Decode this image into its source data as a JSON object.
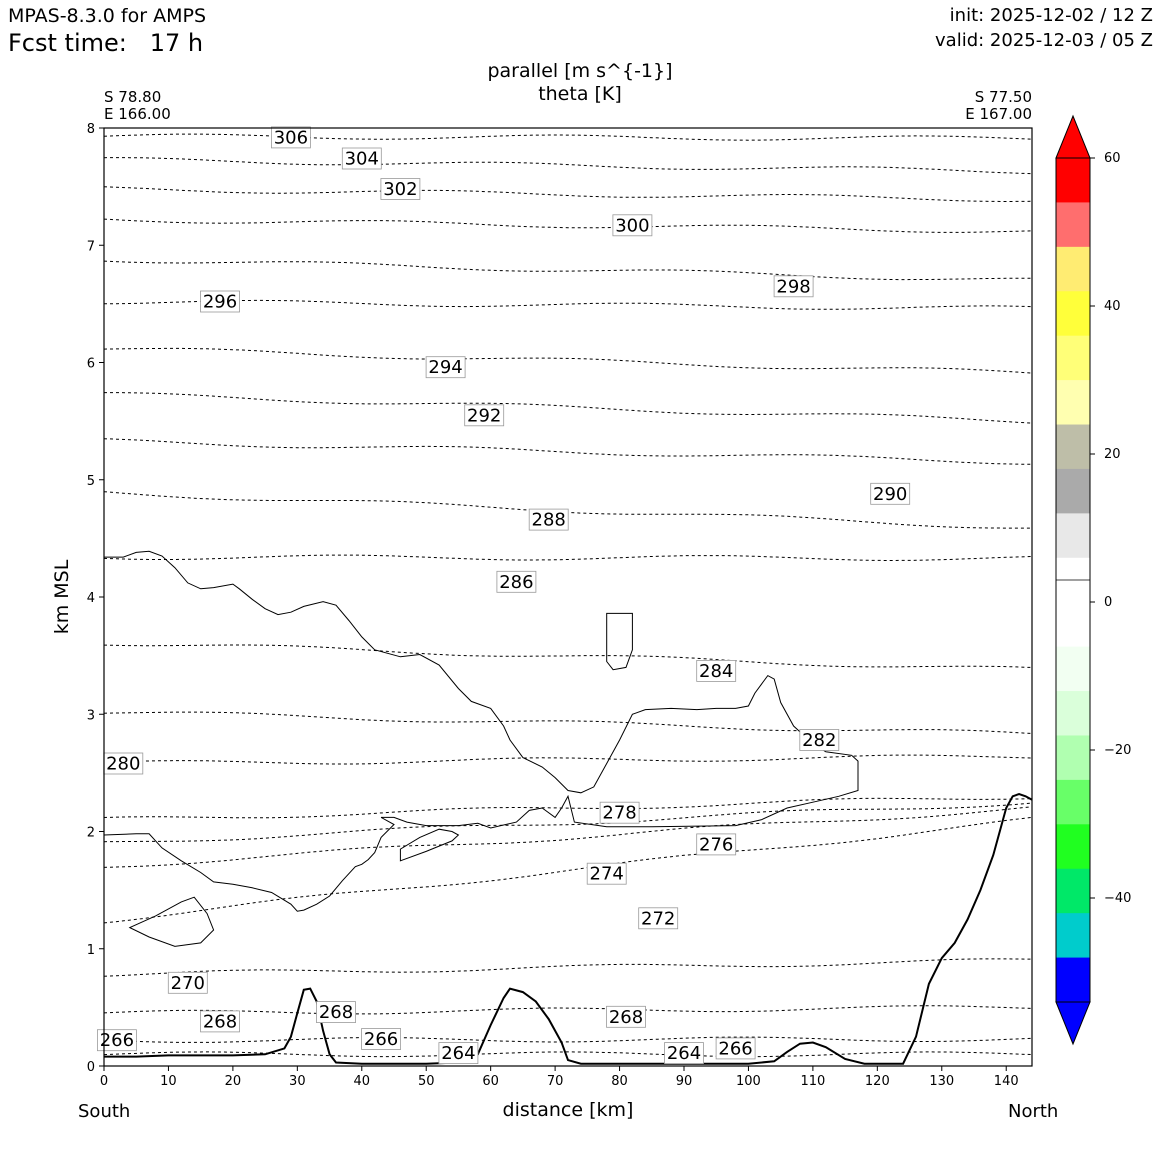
{
  "header": {
    "model": "MPAS-8.3.0 for AMPS",
    "fcst_label": "Fcst time:",
    "fcst_value": "17 h",
    "init": "init: 2025-12-02 / 12 Z",
    "valid": "valid: 2025-12-03 / 05 Z"
  },
  "chart_data": {
    "type": "contour",
    "title": "parallel [m s^{-1}]",
    "subtitle": "theta [K]",
    "xlabel": "distance [km]",
    "ylabel": "km MSL",
    "xlim": [
      0,
      144
    ],
    "ylim": [
      0,
      8
    ],
    "x_ticks": [
      "0",
      "10",
      "20",
      "30",
      "40",
      "50",
      "60",
      "70",
      "80",
      "90",
      "100",
      "110",
      "120",
      "130",
      "140"
    ],
    "y_ticks": [
      "0",
      "1",
      "2",
      "3",
      "4",
      "5",
      "6",
      "7",
      "8"
    ],
    "start_point": {
      "lat": "S 78.80",
      "lon": "E 166.00",
      "name": "South"
    },
    "end_point": {
      "lat": "S 77.50",
      "lon": "E 167.00",
      "name": "North"
    },
    "theta_contours": [
      {
        "level": "306",
        "y0": 7.93,
        "y1": 7.91,
        "label_x": 29,
        "label_y": 7.92
      },
      {
        "level": "304",
        "y0": 7.73,
        "y1": 7.63,
        "label_x": 40,
        "label_y": 7.74
      },
      {
        "level": "302",
        "y0": 7.48,
        "y1": 7.39,
        "label_x": 46,
        "label_y": 7.48
      },
      {
        "level": "300",
        "y0": 7.22,
        "y1": 7.12,
        "label_x": 82,
        "label_y": 7.17
      },
      {
        "level": "298",
        "y0": 6.88,
        "y1": 6.7,
        "label_x": 107,
        "label_y": 6.65
      },
      {
        "level": "296",
        "y0": 6.52,
        "y1": 6.46,
        "label_x": 18,
        "label_y": 6.52
      },
      {
        "level": "294",
        "y0": 6.12,
        "y1": 5.91,
        "label_x": 53,
        "label_y": 5.96
      },
      {
        "level": "292",
        "y0": 5.73,
        "y1": 5.5,
        "label_x": 59,
        "label_y": 5.55
      },
      {
        "level": "290",
        "y0": 5.33,
        "y1": 5.15,
        "label_x": 122,
        "label_y": 4.88
      },
      {
        "level": "288",
        "y0": 4.89,
        "y1": 4.59,
        "label_x": 69,
        "label_y": 4.66
      },
      {
        "level": "286",
        "y0": 4.34,
        "y1": 4.33,
        "label_x": 64,
        "label_y": 4.13
      },
      {
        "level": "284",
        "y0": 3.61,
        "y1": 3.38,
        "label_x": 95,
        "label_y": 3.37
      },
      {
        "level": "282",
        "y0": 3.02,
        "y1": 2.83,
        "label_x": 111,
        "label_y": 2.78
      },
      {
        "level": "280",
        "y0": 2.58,
        "y1": 2.64,
        "label_x": 3,
        "label_y": 2.58
      },
      {
        "level": "278",
        "y0": 2.1,
        "y1": 2.3,
        "label_x": 80,
        "label_y": 2.16
      },
      {
        "level": "276",
        "y0": 1.9,
        "y1": 2.25,
        "label_x": 95,
        "label_y": 1.89
      },
      {
        "level": "274",
        "y0": 1.7,
        "y1": 2.2,
        "label_x": 78,
        "label_y": 1.64
      },
      {
        "level": "272",
        "y0": 1.24,
        "y1": 2.1,
        "label_x": 86,
        "label_y": 1.26
      },
      {
        "level": "270",
        "y0": 0.78,
        "y1": 0.9,
        "label_x": 13,
        "label_y": 0.71
      },
      {
        "level": "268",
        "y0": 0.45,
        "y1": 0.5,
        "label_x": 18,
        "label_y": 0.38
      },
      {
        "level": "268",
        "y0": 0.45,
        "y1": 0.5,
        "label_x": 36,
        "label_y": 0.46
      },
      {
        "level": "268",
        "y0": 0.45,
        "y1": 0.5,
        "label_x": 81,
        "label_y": 0.42
      },
      {
        "level": "266",
        "y0": 0.22,
        "y1": 0.23,
        "label_x": 2,
        "label_y": 0.22
      },
      {
        "level": "266",
        "y0": 0.22,
        "y1": 0.23,
        "label_x": 43,
        "label_y": 0.23
      },
      {
        "level": "266",
        "y0": 0.22,
        "y1": 0.23,
        "label_x": 98,
        "label_y": 0.15
      },
      {
        "level": "264",
        "y0": 0.1,
        "y1": 0.1,
        "label_x": 55,
        "label_y": 0.11
      },
      {
        "level": "264",
        "y0": 0.1,
        "y1": 0.1,
        "label_x": 90,
        "label_y": 0.11
      }
    ],
    "wind_zero_contour": [
      [
        0,
        4.34
      ],
      [
        3,
        4.34
      ],
      [
        5,
        4.38
      ],
      [
        7,
        4.39
      ],
      [
        9,
        4.35
      ],
      [
        11,
        4.25
      ],
      [
        13,
        4.12
      ],
      [
        15,
        4.07
      ],
      [
        17,
        4.08
      ],
      [
        20,
        4.11
      ],
      [
        21,
        4.07
      ],
      [
        23,
        3.98
      ],
      [
        25,
        3.9
      ],
      [
        27,
        3.85
      ],
      [
        29,
        3.87
      ],
      [
        31,
        3.92
      ],
      [
        34,
        3.96
      ],
      [
        36,
        3.93
      ],
      [
        38,
        3.8
      ],
      [
        40,
        3.66
      ],
      [
        42,
        3.55
      ],
      [
        46,
        3.49
      ],
      [
        49,
        3.51
      ],
      [
        52,
        3.42
      ],
      [
        55,
        3.22
      ],
      [
        57,
        3.11
      ],
      [
        60,
        3.05
      ],
      [
        62,
        2.9
      ],
      [
        63,
        2.78
      ],
      [
        65,
        2.63
      ],
      [
        68,
        2.55
      ],
      [
        70,
        2.46
      ],
      [
        72,
        2.35
      ],
      [
        74,
        2.33
      ],
      [
        76,
        2.38
      ],
      [
        78,
        2.58
      ],
      [
        80,
        2.78
      ],
      [
        82,
        3.0
      ],
      [
        84,
        3.04
      ],
      [
        88,
        3.05
      ],
      [
        92,
        3.04
      ],
      [
        95,
        3.05
      ],
      [
        98,
        3.05
      ],
      [
        100,
        3.07
      ],
      [
        101,
        3.18
      ],
      [
        103,
        3.33
      ],
      [
        104,
        3.3
      ],
      [
        105,
        3.1
      ],
      [
        107,
        2.9
      ],
      [
        110,
        2.75
      ],
      [
        112,
        2.68
      ],
      [
        116,
        2.65
      ],
      [
        117,
        2.6
      ],
      [
        117,
        2.35
      ],
      [
        114,
        2.3
      ],
      [
        110,
        2.25
      ],
      [
        106,
        2.2
      ],
      [
        102,
        2.1
      ],
      [
        98,
        2.05
      ],
      [
        85,
        2.04
      ],
      [
        78,
        2.04
      ],
      [
        73,
        2.08
      ],
      [
        72,
        2.3
      ],
      [
        71,
        2.2
      ],
      [
        70,
        2.12
      ],
      [
        68,
        2.2
      ],
      [
        66,
        2.18
      ],
      [
        64,
        2.08
      ],
      [
        60,
        2.03
      ],
      [
        58,
        2.07
      ],
      [
        55,
        2.05
      ],
      [
        50,
        2.05
      ],
      [
        47,
        2.08
      ],
      [
        45,
        2.12
      ],
      [
        43,
        2.12
      ],
      [
        45,
        2.06
      ],
      [
        43,
        1.95
      ],
      [
        42,
        1.82
      ],
      [
        41,
        1.76
      ],
      [
        40,
        1.72
      ],
      [
        39,
        1.7
      ],
      [
        37,
        1.58
      ],
      [
        35,
        1.45
      ],
      [
        33,
        1.38
      ],
      [
        31,
        1.33
      ],
      [
        30,
        1.32
      ],
      [
        29,
        1.38
      ],
      [
        26,
        1.48
      ],
      [
        23,
        1.52
      ],
      [
        20,
        1.55
      ],
      [
        17,
        1.57
      ],
      [
        15,
        1.65
      ],
      [
        12,
        1.75
      ],
      [
        9,
        1.86
      ],
      [
        7,
        1.98
      ],
      [
        5,
        1.98
      ],
      [
        0,
        1.97
      ]
    ],
    "wind_small_loops": [
      [
        [
          78,
          3.86
        ],
        [
          82,
          3.86
        ],
        [
          82,
          3.7
        ],
        [
          82,
          3.55
        ],
        [
          81,
          3.4
        ],
        [
          79,
          3.38
        ],
        [
          78,
          3.45
        ],
        [
          78,
          3.7
        ]
      ],
      [
        [
          46,
          1.75
        ],
        [
          50,
          1.83
        ],
        [
          54,
          1.92
        ],
        [
          55,
          1.97
        ],
        [
          54,
          2.0
        ],
        [
          52,
          2.02
        ],
        [
          49,
          1.95
        ],
        [
          46,
          1.85
        ]
      ],
      [
        [
          4,
          1.18
        ],
        [
          8,
          1.28
        ],
        [
          12,
          1.4
        ],
        [
          14,
          1.44
        ],
        [
          16,
          1.3
        ],
        [
          17,
          1.16
        ],
        [
          15,
          1.05
        ],
        [
          11,
          1.02
        ],
        [
          7,
          1.1
        ]
      ]
    ],
    "terrain": [
      [
        0,
        0.08
      ],
      [
        5,
        0.08
      ],
      [
        10,
        0.09
      ],
      [
        20,
        0.09
      ],
      [
        25,
        0.1
      ],
      [
        28,
        0.15
      ],
      [
        29,
        0.25
      ],
      [
        30,
        0.45
      ],
      [
        31,
        0.65
      ],
      [
        32,
        0.66
      ],
      [
        33,
        0.55
      ],
      [
        34,
        0.3
      ],
      [
        35,
        0.1
      ],
      [
        36,
        0.03
      ],
      [
        40,
        0.02
      ],
      [
        50,
        0.02
      ],
      [
        55,
        0.03
      ],
      [
        58,
        0.1
      ],
      [
        60,
        0.35
      ],
      [
        62,
        0.58
      ],
      [
        63,
        0.66
      ],
      [
        65,
        0.63
      ],
      [
        67,
        0.55
      ],
      [
        69,
        0.4
      ],
      [
        71,
        0.2
      ],
      [
        72,
        0.05
      ],
      [
        74,
        0.02
      ],
      [
        90,
        0.02
      ],
      [
        100,
        0.02
      ],
      [
        104,
        0.04
      ],
      [
        106,
        0.12
      ],
      [
        108,
        0.19
      ],
      [
        110,
        0.2
      ],
      [
        112,
        0.16
      ],
      [
        115,
        0.06
      ],
      [
        118,
        0.02
      ],
      [
        124,
        0.02
      ],
      [
        126,
        0.25
      ],
      [
        128,
        0.7
      ],
      [
        130,
        0.92
      ],
      [
        132,
        1.05
      ],
      [
        134,
        1.25
      ],
      [
        136,
        1.5
      ],
      [
        138,
        1.8
      ],
      [
        140,
        2.2
      ],
      [
        141,
        2.3
      ],
      [
        142,
        2.32
      ],
      [
        143,
        2.3
      ],
      [
        144,
        2.27
      ]
    ],
    "colorbar": {
      "ticks": [
        "60",
        "40",
        "20",
        "0",
        "−20",
        "−40"
      ],
      "colors": [
        "#ff0000",
        "#ff6e6e",
        "#ffec72",
        "#ffff3a",
        "#ffff78",
        "#ffffb0",
        "#bebea8",
        "#aaaaaa",
        "#e8e8e8",
        "#ffffff",
        "#ffffff",
        "#f2fff2",
        "#daffda",
        "#b0ffb0",
        "#68ff68",
        "#20ff20",
        "#00e868",
        "#00cccc",
        "#0000ff"
      ],
      "over_color": "#ff0000",
      "under_color": "#0000ff"
    }
  }
}
